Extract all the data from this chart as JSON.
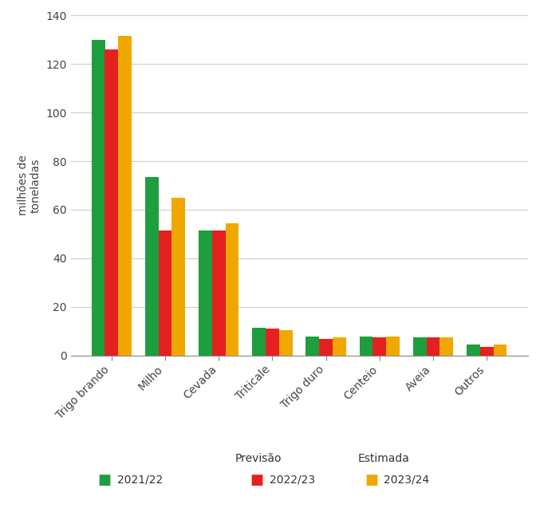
{
  "categories": [
    "Trigo brando",
    "Milho",
    "Cevada",
    "Triticale",
    "Trigo duro",
    "Centeio",
    "Aveia",
    "Outros"
  ],
  "series": {
    "2021/22": [
      130,
      73.5,
      51.5,
      11.5,
      8.0,
      8.0,
      7.5,
      4.5
    ],
    "2022/23": [
      126,
      51.5,
      51.5,
      11.0,
      7.0,
      7.5,
      7.5,
      3.5
    ],
    "2023/24": [
      131.5,
      65.0,
      54.5,
      10.5,
      7.5,
      8.0,
      7.5,
      4.5
    ]
  },
  "colors": {
    "2021/22": "#1e9e3e",
    "2022/23": "#e52020",
    "2023/24": "#f0a800"
  },
  "ylabel": "milhões de\ntoneladas",
  "ylim": [
    0,
    140
  ],
  "yticks": [
    0,
    20,
    40,
    60,
    80,
    100,
    120,
    140
  ],
  "legend_previsao_label": "Previsão",
  "legend_estimada_label": "Estimada",
  "series_order": [
    "2021/22",
    "2022/23",
    "2023/24"
  ],
  "bar_width": 0.25,
  "background_color": "#ffffff",
  "grid_color": "#cccccc",
  "tick_fontsize": 10,
  "legend_fontsize": 10,
  "ylabel_fontsize": 10
}
